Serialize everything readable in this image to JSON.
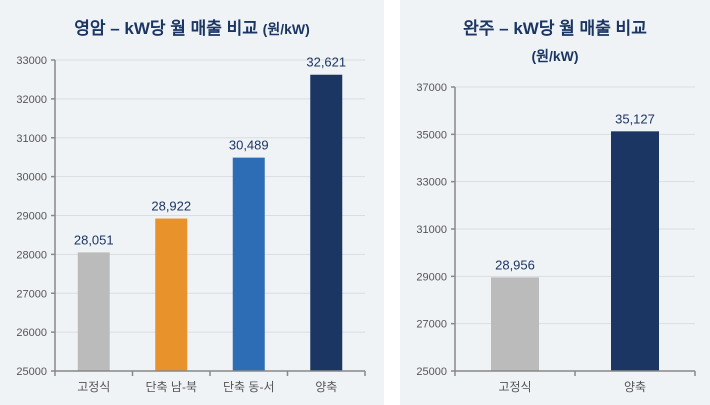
{
  "chart_data": [
    {
      "type": "bar",
      "title": "영암 – kW당 월 매출 비교",
      "title_unit": "(원/kW)",
      "categories": [
        "고정식",
        "단축 남-북",
        "단축 동-서",
        "양축"
      ],
      "values": [
        28051,
        28922,
        30489,
        32621
      ],
      "labels": [
        "28,051",
        "28,922",
        "30,489",
        "32,621"
      ],
      "colors": [
        "#bbbbbb",
        "#e8922b",
        "#2d6db5",
        "#1b3663"
      ],
      "yticks": [
        25000,
        26000,
        27000,
        28000,
        29000,
        30000,
        31000,
        32000,
        33000
      ],
      "ylim": [
        25000,
        33000
      ],
      "grid": true
    },
    {
      "type": "bar",
      "title": "완주 – kW당 월 매출 비교",
      "title_unit": "(원/kW)",
      "categories": [
        "고정식",
        "양축"
      ],
      "values": [
        28956,
        35127
      ],
      "labels": [
        "28,956",
        "35,127"
      ],
      "colors": [
        "#bbbbbb",
        "#1b3663"
      ],
      "yticks": [
        25000,
        27000,
        29000,
        31000,
        33000,
        35000,
        37000
      ],
      "ylim": [
        25000,
        37000
      ],
      "grid": true
    }
  ]
}
